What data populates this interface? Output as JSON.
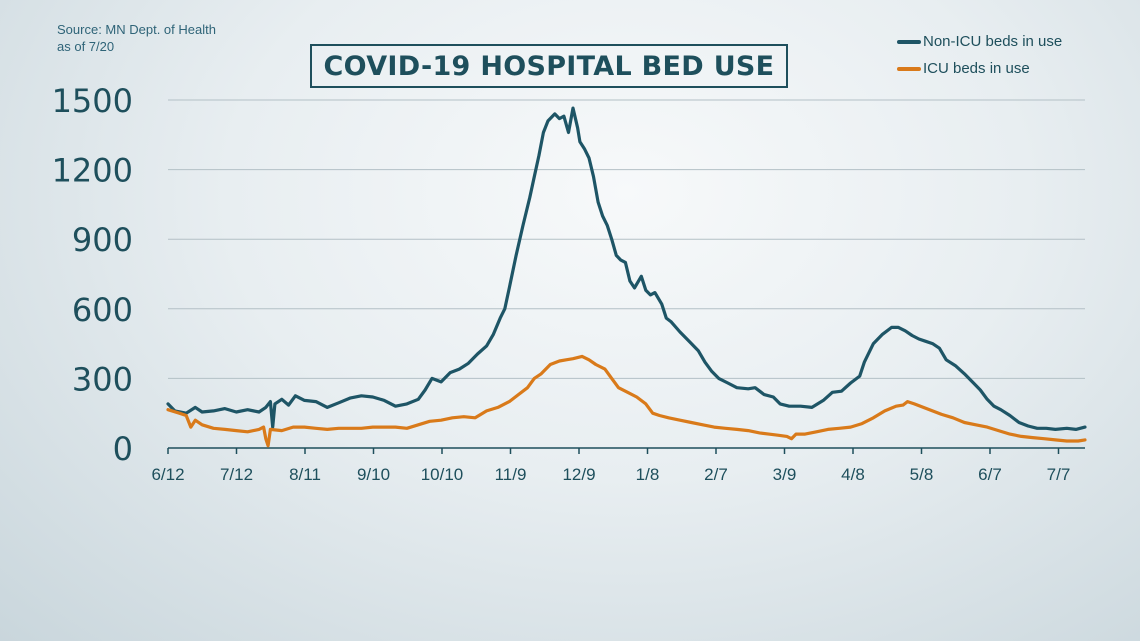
{
  "source": {
    "line1": "Source: MN Dept. of Health",
    "line2": "as of 7/20"
  },
  "chart_data": {
    "type": "line",
    "title": "COVID-19 HOSPITAL BED USE",
    "xlabel": "",
    "ylabel": "",
    "ylim": [
      0,
      1500
    ],
    "y_ticks": [
      0,
      300,
      600,
      900,
      1200,
      1500
    ],
    "x_tick_labels": [
      "6/12",
      "7/12",
      "8/11",
      "9/10",
      "10/10",
      "11/9",
      "12/9",
      "1/8",
      "2/7",
      "3/9",
      "4/8",
      "5/8",
      "6/7",
      "7/7"
    ],
    "x_range_days": [
      0,
      403
    ],
    "grid": "horizontal",
    "legend_position": "top-right",
    "series": [
      {
        "name": "Non-ICU beds in use",
        "color": "#1e5566",
        "points": [
          [
            0,
            190
          ],
          [
            3,
            160
          ],
          [
            8,
            150
          ],
          [
            12,
            175
          ],
          [
            15,
            155
          ],
          [
            20,
            160
          ],
          [
            25,
            170
          ],
          [
            30,
            155
          ],
          [
            35,
            165
          ],
          [
            40,
            155
          ],
          [
            43,
            175
          ],
          [
            45,
            200
          ],
          [
            46,
            90
          ],
          [
            47,
            190
          ],
          [
            50,
            210
          ],
          [
            53,
            185
          ],
          [
            56,
            225
          ],
          [
            60,
            205
          ],
          [
            65,
            200
          ],
          [
            70,
            175
          ],
          [
            75,
            195
          ],
          [
            80,
            215
          ],
          [
            85,
            225
          ],
          [
            90,
            220
          ],
          [
            95,
            205
          ],
          [
            100,
            180
          ],
          [
            105,
            190
          ],
          [
            110,
            210
          ],
          [
            113,
            250
          ],
          [
            116,
            300
          ],
          [
            120,
            285
          ],
          [
            124,
            325
          ],
          [
            128,
            340
          ],
          [
            132,
            365
          ],
          [
            136,
            405
          ],
          [
            140,
            440
          ],
          [
            143,
            490
          ],
          [
            146,
            560
          ],
          [
            148,
            600
          ],
          [
            150,
            690
          ],
          [
            153,
            830
          ],
          [
            156,
            960
          ],
          [
            159,
            1080
          ],
          [
            161,
            1170
          ],
          [
            163,
            1260
          ],
          [
            165,
            1360
          ],
          [
            167,
            1410
          ],
          [
            170,
            1440
          ],
          [
            172,
            1420
          ],
          [
            174,
            1430
          ],
          [
            176,
            1360
          ],
          [
            178,
            1465
          ],
          [
            180,
            1380
          ],
          [
            181,
            1320
          ],
          [
            183,
            1290
          ],
          [
            185,
            1250
          ],
          [
            187,
            1170
          ],
          [
            189,
            1060
          ],
          [
            191,
            1000
          ],
          [
            193,
            960
          ],
          [
            195,
            900
          ],
          [
            197,
            830
          ],
          [
            199,
            810
          ],
          [
            201,
            800
          ],
          [
            203,
            720
          ],
          [
            205,
            690
          ],
          [
            208,
            740
          ],
          [
            210,
            680
          ],
          [
            212,
            660
          ],
          [
            214,
            670
          ],
          [
            217,
            620
          ],
          [
            219,
            560
          ],
          [
            221,
            545
          ],
          [
            225,
            500
          ],
          [
            229,
            460
          ],
          [
            233,
            420
          ],
          [
            236,
            370
          ],
          [
            239,
            330
          ],
          [
            242,
            300
          ],
          [
            246,
            280
          ],
          [
            250,
            260
          ],
          [
            255,
            255
          ],
          [
            258,
            260
          ],
          [
            262,
            230
          ],
          [
            266,
            220
          ],
          [
            269,
            190
          ],
          [
            273,
            180
          ],
          [
            278,
            180
          ],
          [
            283,
            175
          ],
          [
            288,
            205
          ],
          [
            292,
            240
          ],
          [
            296,
            245
          ],
          [
            300,
            280
          ],
          [
            304,
            310
          ],
          [
            306,
            370
          ],
          [
            310,
            450
          ],
          [
            314,
            490
          ],
          [
            318,
            520
          ],
          [
            321,
            520
          ],
          [
            324,
            505
          ],
          [
            327,
            485
          ],
          [
            330,
            470
          ],
          [
            333,
            460
          ],
          [
            336,
            450
          ],
          [
            339,
            430
          ],
          [
            342,
            380
          ],
          [
            346,
            355
          ],
          [
            350,
            320
          ],
          [
            354,
            280
          ],
          [
            357,
            250
          ],
          [
            360,
            210
          ],
          [
            363,
            180
          ],
          [
            366,
            165
          ],
          [
            370,
            140
          ],
          [
            374,
            110
          ],
          [
            378,
            95
          ],
          [
            382,
            85
          ],
          [
            386,
            85
          ],
          [
            390,
            80
          ],
          [
            395,
            85
          ],
          [
            399,
            80
          ],
          [
            403,
            90
          ]
        ]
      },
      {
        "name": "ICU beds in use",
        "color": "#d97a1a",
        "points": [
          [
            0,
            165
          ],
          [
            5,
            150
          ],
          [
            8,
            140
          ],
          [
            10,
            90
          ],
          [
            12,
            120
          ],
          [
            15,
            100
          ],
          [
            20,
            85
          ],
          [
            25,
            80
          ],
          [
            30,
            75
          ],
          [
            35,
            70
          ],
          [
            40,
            80
          ],
          [
            42,
            90
          ],
          [
            43,
            40
          ],
          [
            44,
            10
          ],
          [
            45,
            80
          ],
          [
            50,
            75
          ],
          [
            55,
            90
          ],
          [
            60,
            90
          ],
          [
            65,
            85
          ],
          [
            70,
            80
          ],
          [
            75,
            85
          ],
          [
            80,
            85
          ],
          [
            85,
            85
          ],
          [
            90,
            90
          ],
          [
            95,
            90
          ],
          [
            100,
            90
          ],
          [
            105,
            85
          ],
          [
            110,
            100
          ],
          [
            115,
            115
          ],
          [
            120,
            120
          ],
          [
            125,
            130
          ],
          [
            130,
            135
          ],
          [
            135,
            130
          ],
          [
            140,
            160
          ],
          [
            145,
            175
          ],
          [
            150,
            200
          ],
          [
            154,
            230
          ],
          [
            158,
            260
          ],
          [
            161,
            300
          ],
          [
            164,
            320
          ],
          [
            168,
            360
          ],
          [
            172,
            375
          ],
          [
            175,
            380
          ],
          [
            178,
            385
          ],
          [
            182,
            395
          ],
          [
            185,
            380
          ],
          [
            188,
            360
          ],
          [
            192,
            340
          ],
          [
            195,
            300
          ],
          [
            198,
            260
          ],
          [
            202,
            240
          ],
          [
            206,
            220
          ],
          [
            210,
            190
          ],
          [
            213,
            150
          ],
          [
            216,
            140
          ],
          [
            220,
            130
          ],
          [
            225,
            120
          ],
          [
            230,
            110
          ],
          [
            235,
            100
          ],
          [
            240,
            90
          ],
          [
            245,
            85
          ],
          [
            250,
            80
          ],
          [
            255,
            75
          ],
          [
            260,
            65
          ],
          [
            264,
            60
          ],
          [
            268,
            55
          ],
          [
            272,
            50
          ],
          [
            274,
            40
          ],
          [
            276,
            60
          ],
          [
            280,
            60
          ],
          [
            285,
            70
          ],
          [
            290,
            80
          ],
          [
            295,
            85
          ],
          [
            300,
            90
          ],
          [
            305,
            105
          ],
          [
            310,
            130
          ],
          [
            315,
            160
          ],
          [
            320,
            180
          ],
          [
            323,
            185
          ],
          [
            325,
            200
          ],
          [
            328,
            190
          ],
          [
            332,
            175
          ],
          [
            336,
            160
          ],
          [
            340,
            145
          ],
          [
            345,
            130
          ],
          [
            350,
            110
          ],
          [
            355,
            100
          ],
          [
            360,
            90
          ],
          [
            365,
            75
          ],
          [
            370,
            60
          ],
          [
            375,
            50
          ],
          [
            380,
            45
          ],
          [
            385,
            40
          ],
          [
            390,
            35
          ],
          [
            395,
            30
          ],
          [
            400,
            30
          ],
          [
            403,
            35
          ]
        ]
      }
    ]
  }
}
